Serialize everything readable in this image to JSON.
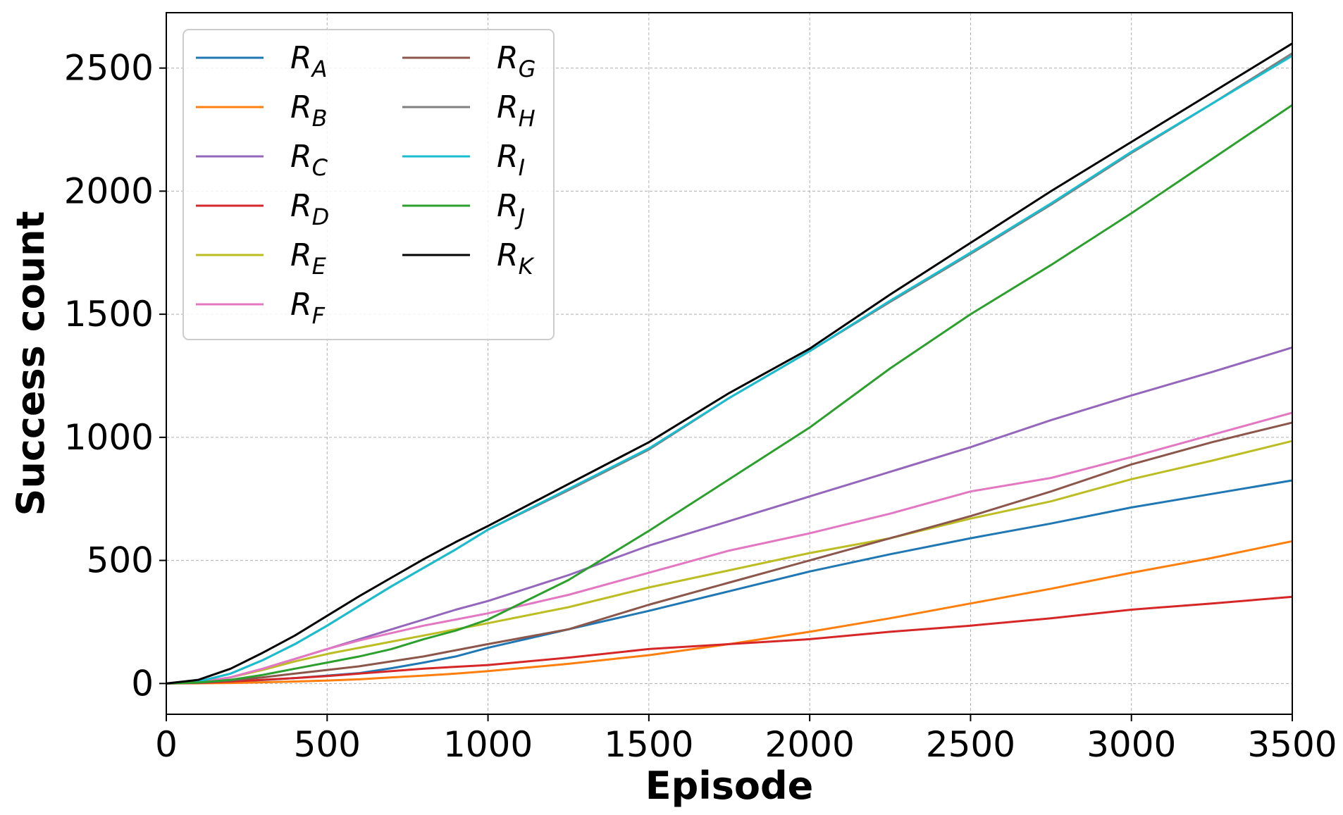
{
  "chart_data": {
    "type": "line",
    "title": "",
    "xlabel": "Episode",
    "ylabel": "Success count",
    "xlim": [
      0,
      3500
    ],
    "ylim": [
      -125,
      2725
    ],
    "xticks": [
      0,
      500,
      1000,
      1500,
      2000,
      2500,
      3000,
      3500
    ],
    "yticks": [
      0,
      500,
      1000,
      1500,
      2000,
      2500
    ],
    "grid": true,
    "legend_position": "top-left",
    "legend_columns": 2,
    "series": [
      {
        "name": "R",
        "subscript": "A",
        "color": "#1f77b4",
        "x": [
          0,
          100,
          200,
          300,
          400,
          500,
          600,
          700,
          800,
          900,
          1000,
          1250,
          1500,
          1750,
          2000,
          2250,
          2500,
          2750,
          3000,
          3250,
          3500
        ],
        "y": [
          0,
          2,
          6,
          14,
          22,
          32,
          42,
          62,
          85,
          110,
          145,
          220,
          295,
          375,
          455,
          525,
          590,
          650,
          715,
          770,
          825
        ]
      },
      {
        "name": "R",
        "subscript": "B",
        "color": "#ff7f0e",
        "x": [
          0,
          100,
          200,
          300,
          400,
          500,
          600,
          700,
          800,
          900,
          1000,
          1250,
          1500,
          1750,
          2000,
          2250,
          2500,
          2750,
          3000,
          3250,
          3500
        ],
        "y": [
          0,
          1,
          2,
          5,
          8,
          12,
          17,
          25,
          32,
          40,
          50,
          80,
          115,
          160,
          210,
          265,
          325,
          385,
          450,
          510,
          578
        ]
      },
      {
        "name": "R",
        "subscript": "C",
        "color": "#9467bd",
        "x": [
          0,
          100,
          200,
          300,
          400,
          500,
          600,
          700,
          800,
          900,
          1000,
          1250,
          1500,
          1750,
          2000,
          2250,
          2500,
          2750,
          3000,
          3250,
          3500
        ],
        "y": [
          0,
          5,
          25,
          60,
          100,
          140,
          180,
          220,
          260,
          300,
          335,
          440,
          560,
          660,
          760,
          860,
          960,
          1070,
          1170,
          1265,
          1365
        ]
      },
      {
        "name": "R",
        "subscript": "D",
        "color": "#d62728",
        "x": [
          0,
          100,
          200,
          300,
          400,
          500,
          600,
          700,
          800,
          900,
          1000,
          1250,
          1500,
          1750,
          2000,
          2250,
          2500,
          2750,
          3000,
          3250,
          3500
        ],
        "y": [
          0,
          2,
          8,
          15,
          22,
          30,
          40,
          50,
          60,
          68,
          75,
          105,
          140,
          160,
          180,
          210,
          235,
          265,
          300,
          325,
          352
        ]
      },
      {
        "name": "R",
        "subscript": "E",
        "color": "#bcbd22",
        "x": [
          0,
          100,
          200,
          300,
          400,
          500,
          600,
          700,
          800,
          900,
          1000,
          1250,
          1500,
          1750,
          2000,
          2250,
          2500,
          2750,
          3000,
          3250,
          3500
        ],
        "y": [
          0,
          5,
          25,
          55,
          90,
          120,
          145,
          170,
          195,
          220,
          245,
          310,
          390,
          460,
          530,
          590,
          670,
          740,
          830,
          905,
          985
        ]
      },
      {
        "name": "R",
        "subscript": "F",
        "color": "#e377c2",
        "x": [
          0,
          100,
          200,
          300,
          400,
          500,
          600,
          700,
          800,
          900,
          1000,
          1250,
          1500,
          1750,
          2000,
          2250,
          2500,
          2750,
          3000,
          3250,
          3500
        ],
        "y": [
          0,
          5,
          25,
          60,
          100,
          140,
          175,
          205,
          235,
          260,
          285,
          360,
          450,
          540,
          610,
          690,
          780,
          835,
          920,
          1010,
          1100
        ]
      },
      {
        "name": "R",
        "subscript": "G",
        "color": "#8c564b",
        "x": [
          0,
          100,
          200,
          300,
          400,
          500,
          600,
          700,
          800,
          900,
          1000,
          1250,
          1500,
          1750,
          2000,
          2250,
          2500,
          2750,
          3000,
          3250,
          3500
        ],
        "y": [
          0,
          3,
          12,
          25,
          40,
          55,
          70,
          90,
          110,
          135,
          160,
          220,
          320,
          410,
          500,
          590,
          680,
          780,
          890,
          980,
          1060
        ]
      },
      {
        "name": "R",
        "subscript": "H",
        "color": "#7f7f7f",
        "x": [
          0,
          100,
          200,
          300,
          400,
          500,
          600,
          700,
          800,
          900,
          1000,
          1250,
          1500,
          1750,
          2000,
          2250,
          2500,
          2750,
          3000,
          3250,
          3500
        ],
        "y": [
          0,
          8,
          40,
          95,
          160,
          235,
          315,
          395,
          470,
          545,
          625,
          785,
          950,
          1160,
          1350,
          1550,
          1745,
          1945,
          2155,
          2355,
          2560
        ]
      },
      {
        "name": "R",
        "subscript": "I",
        "color": "#17becf",
        "x": [
          0,
          100,
          200,
          300,
          400,
          500,
          600,
          700,
          800,
          900,
          1000,
          1250,
          1500,
          1750,
          2000,
          2250,
          2500,
          2750,
          3000,
          3250,
          3500
        ],
        "y": [
          0,
          8,
          40,
          95,
          160,
          235,
          315,
          395,
          470,
          545,
          625,
          790,
          955,
          1160,
          1350,
          1555,
          1750,
          1950,
          2160,
          2355,
          2550
        ]
      },
      {
        "name": "R",
        "subscript": "J",
        "color": "#2ca02c",
        "x": [
          0,
          100,
          200,
          300,
          400,
          500,
          600,
          700,
          800,
          900,
          1000,
          1250,
          1500,
          1750,
          2000,
          2250,
          2500,
          2750,
          3000,
          3250,
          3500
        ],
        "y": [
          0,
          4,
          15,
          35,
          60,
          85,
          110,
          140,
          180,
          215,
          260,
          420,
          620,
          830,
          1040,
          1280,
          1500,
          1700,
          1910,
          2130,
          2350
        ]
      },
      {
        "name": "R",
        "subscript": "K",
        "color": "#000000",
        "x": [
          0,
          100,
          200,
          300,
          400,
          500,
          600,
          700,
          800,
          900,
          1000,
          1250,
          1500,
          1750,
          2000,
          2250,
          2500,
          2750,
          3000,
          3250,
          3500
        ],
        "y": [
          0,
          15,
          60,
          125,
          195,
          275,
          355,
          430,
          505,
          575,
          640,
          810,
          980,
          1180,
          1360,
          1580,
          1790,
          2000,
          2200,
          2400,
          2600
        ]
      }
    ]
  }
}
